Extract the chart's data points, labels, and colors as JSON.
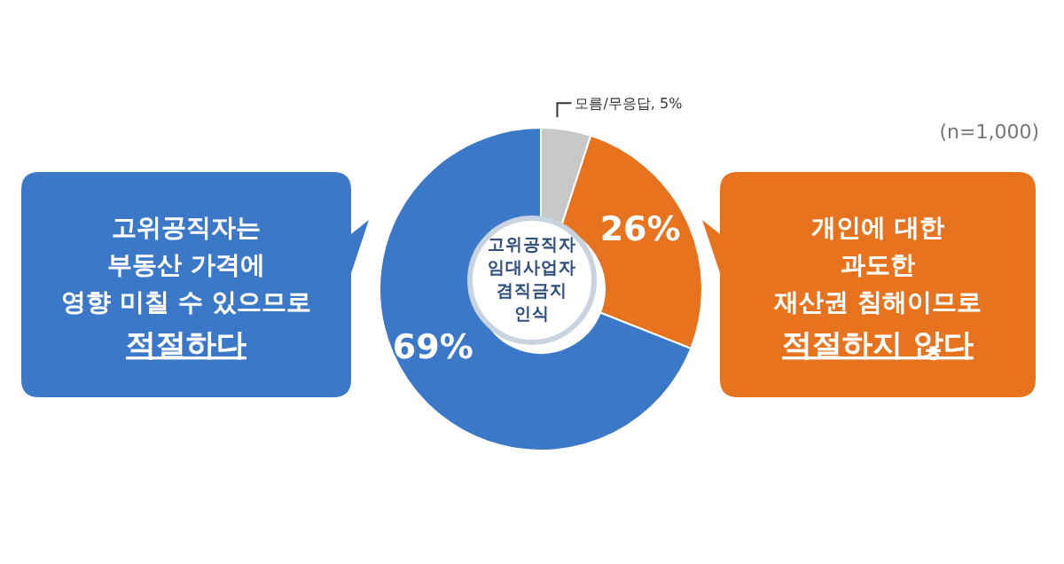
{
  "chart_data": {
    "type": "donut",
    "title": "고위공직자\n임대사업자\n겸직금지\n인식",
    "categories": [
      "모름/무응답",
      "개인에 대한\n과도한\n재산권 침해이므로\n적절하지 않다",
      "고위공직자는\n부동산 가격에\n영향 미칠 수 있으므로\n적절하다"
    ],
    "values": [
      5,
      26,
      69
    ],
    "value_labels": [
      "5%",
      "26%",
      "69%"
    ],
    "colors": [
      "#c8c8c8",
      "#e8731e",
      "#3b78c8"
    ],
    "annotations": [
      "(n=1,000)"
    ]
  }
}
